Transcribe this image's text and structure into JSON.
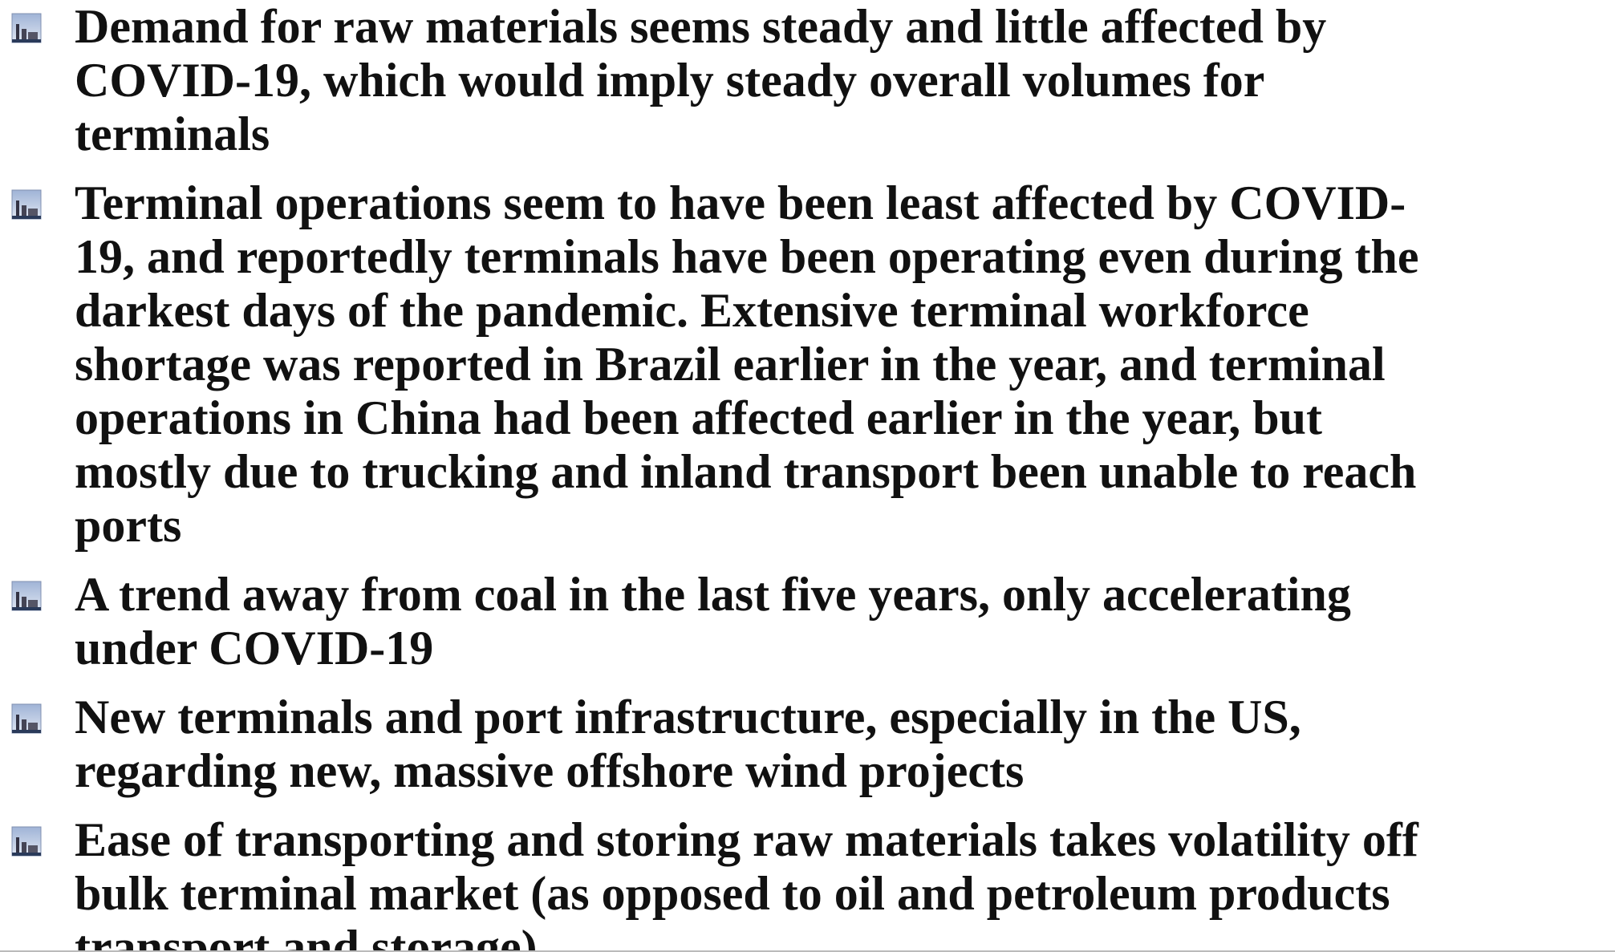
{
  "bullets": [
    {
      "lines": [
        "Demand for raw materials seems steady and little affected by",
        "COVID-19, which would imply steady overall volumes for",
        "terminals"
      ]
    },
    {
      "lines": [
        "Terminal operations seem to have been least affected by COVID-",
        "19, and reportedly terminals have been operating even during the",
        "darkest days of the pandemic. Extensive terminal workforce",
        "shortage was reported in Brazil earlier in the year, and terminal",
        "operations in China had been affected earlier in the year, but",
        "mostly due to trucking and inland transport been unable to reach",
        "ports"
      ]
    },
    {
      "lines": [
        "A trend away from coal in the last five years, only accelerating",
        "under COVID-19"
      ]
    },
    {
      "lines": [
        "New terminals and port infrastructure, especially in the US,",
        "regarding new, massive offshore wind projects"
      ]
    },
    {
      "lines": [
        "Ease of transporting and storing raw materials takes volatility off",
        "bulk terminal market (as opposed to oil and petroleum products",
        "transport and storage)"
      ]
    }
  ]
}
